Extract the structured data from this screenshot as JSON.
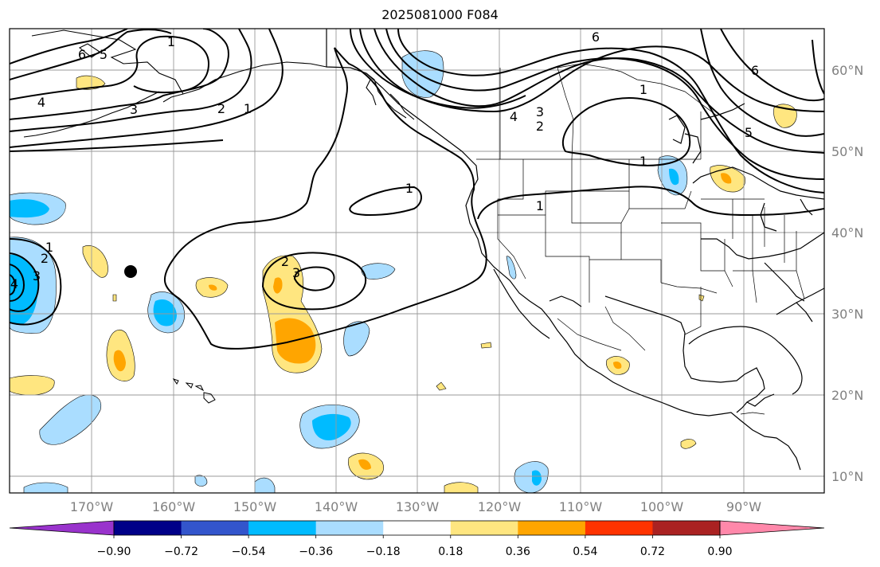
{
  "title": "2025081000 F084",
  "axes": {
    "lon_labels": [
      "170°W",
      "160°W",
      "150°W",
      "140°W",
      "130°W",
      "120°W",
      "110°W",
      "100°W",
      "90°W"
    ],
    "lat_labels": [
      "60°N",
      "50°N",
      "40°N",
      "30°N",
      "20°N",
      "10°N"
    ]
  },
  "colorbar": {
    "tick_labels": [
      "−0.90",
      "−0.72",
      "−0.54",
      "−0.36",
      "−0.18",
      "0.18",
      "0.36",
      "0.54",
      "0.72",
      "0.90"
    ],
    "colors": [
      "#9933cc",
      "#000088",
      "#3355cc",
      "#00bbff",
      "#aaddff",
      "#ffffff",
      "#ffe680",
      "#ffa500",
      "#ff3300",
      "#aa2222",
      "#ff88aa"
    ]
  },
  "contour_labels": [
    "6",
    "5",
    "4",
    "3",
    "2",
    "1",
    "1",
    "6",
    "4",
    "3",
    "2",
    "1",
    "5",
    "6",
    "1",
    "1",
    "1",
    "2",
    "3",
    "4",
    "3",
    "2",
    "1"
  ],
  "marker": "black-dot"
}
